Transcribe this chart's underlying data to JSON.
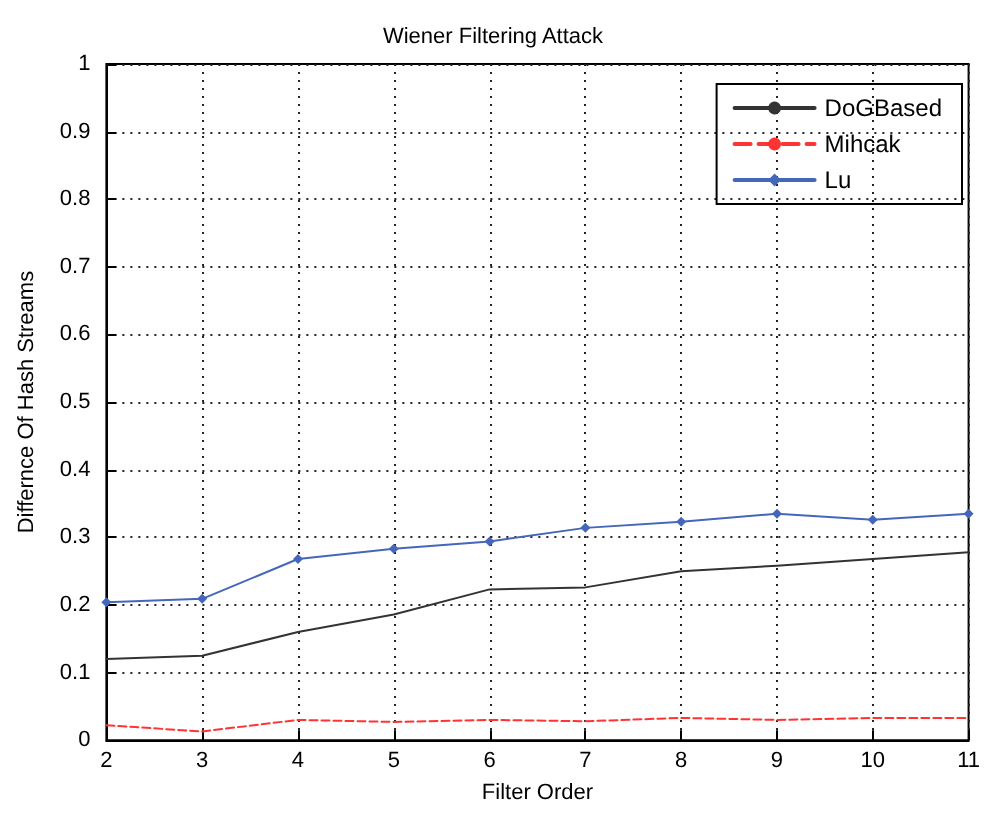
{
  "chart_data": {
    "type": "line",
    "title": "Wiener Filtering Attack",
    "xlabel": "Filter Order",
    "ylabel": "Differnce Of Hash Streams",
    "x": [
      2,
      3,
      4,
      5,
      6,
      7,
      8,
      9,
      10,
      11
    ],
    "series": [
      {
        "name": "DoGBased",
        "color": "#333333",
        "line_style": "solid",
        "marker": "none",
        "values": [
          0.12,
          0.125,
          0.16,
          0.186,
          0.223,
          0.226,
          0.25,
          0.258,
          0.268,
          0.278
        ]
      },
      {
        "name": "Mihcak",
        "color": "#ff3333",
        "line_style": "dashed",
        "marker": "none",
        "values": [
          0.022,
          0.013,
          0.03,
          0.027,
          0.03,
          0.028,
          0.033,
          0.03,
          0.033,
          0.033
        ]
      },
      {
        "name": "Lu",
        "color": "#4466bb",
        "line_style": "solid",
        "marker": "diamond",
        "values": [
          0.204,
          0.209,
          0.268,
          0.283,
          0.294,
          0.314,
          0.323,
          0.335,
          0.326,
          0.335
        ]
      }
    ],
    "xlim": [
      2,
      11
    ],
    "xticks": [
      2,
      3,
      4,
      5,
      6,
      7,
      8,
      9,
      10,
      11
    ],
    "ylim": [
      0,
      1
    ],
    "yticks": [
      0,
      0.1,
      0.2,
      0.3,
      0.4,
      0.5,
      0.6,
      0.7,
      0.8,
      0.9,
      1
    ],
    "grid": true,
    "legend": "top right"
  }
}
